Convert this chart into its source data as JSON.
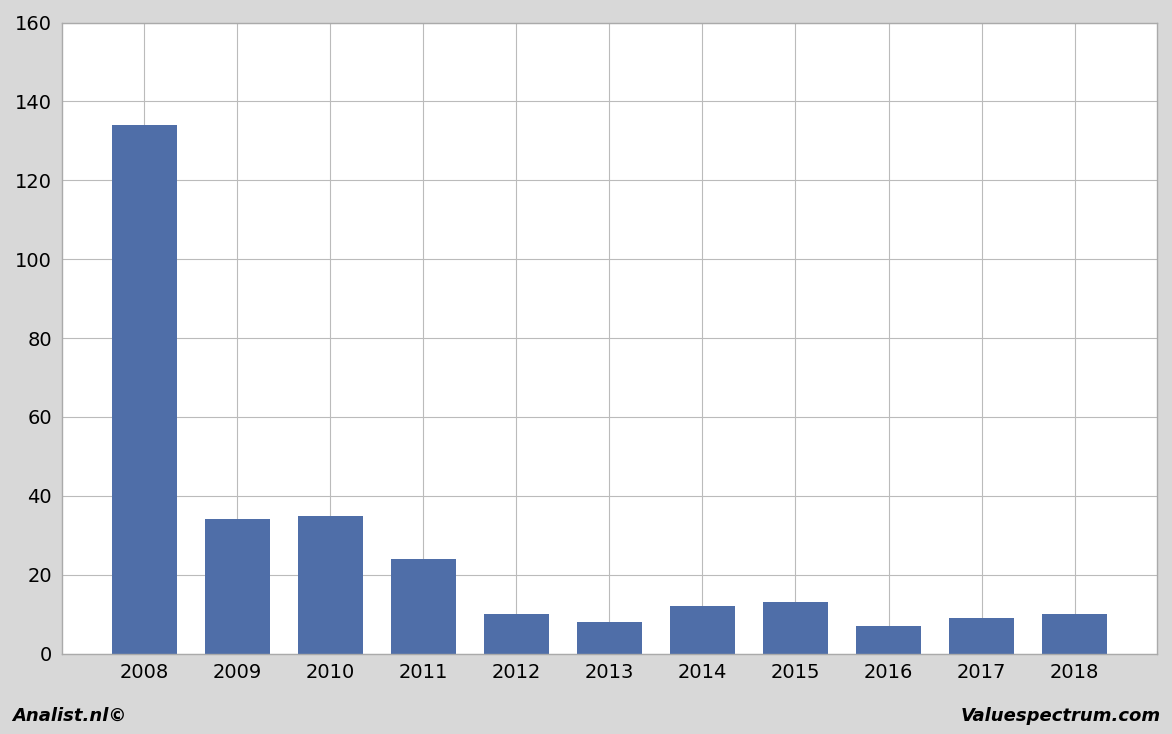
{
  "categories": [
    "2008",
    "2009",
    "2010",
    "2011",
    "2012",
    "2013",
    "2014",
    "2015",
    "2016",
    "2017",
    "2018"
  ],
  "values": [
    134,
    34,
    35,
    24,
    10,
    8,
    12,
    13,
    7,
    9,
    10
  ],
  "bar_color": "#4f6ea8",
  "ylim": [
    0,
    160
  ],
  "yticks": [
    0,
    20,
    40,
    60,
    80,
    100,
    120,
    140,
    160
  ],
  "plot_bg_color": "#ffffff",
  "fig_bg_color": "#d8d8d8",
  "grid_color": "#bbbbbb",
  "footer_left": "Analist.nl©",
  "footer_right": "Valuespectrum.com",
  "footer_fontsize": 13,
  "bar_width": 0.7,
  "tick_fontsize": 14
}
